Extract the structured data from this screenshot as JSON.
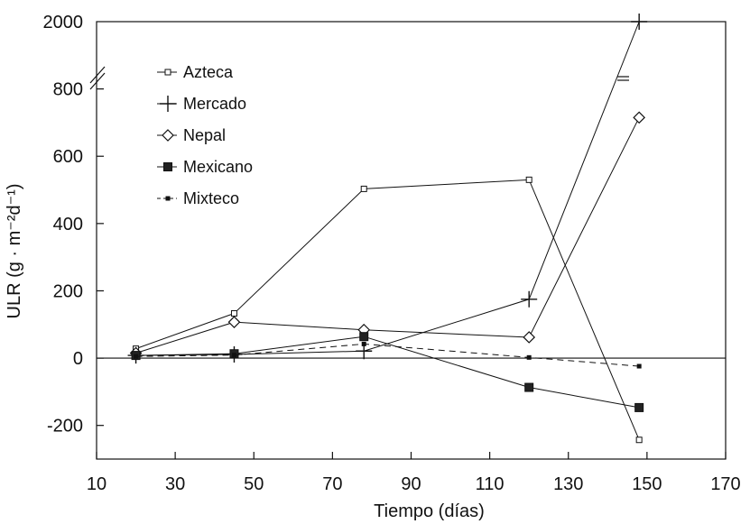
{
  "chart_data": {
    "type": "line",
    "xlabel": "Tiempo  (días)",
    "ylabel": "ULR (g · m⁻²d⁻¹)",
    "xlim": [
      10,
      170
    ],
    "x_ticks": [
      10,
      30,
      50,
      70,
      90,
      110,
      130,
      150,
      170
    ],
    "x_tick_labels": [
      "10",
      "30",
      "50",
      "70",
      "90",
      "110",
      "130",
      "150",
      "170"
    ],
    "ylim": [
      -300,
      1000
    ],
    "y_ticks": [
      -200,
      0,
      200,
      400,
      600,
      800,
      2000
    ],
    "y_tick_labels": [
      "-200",
      "0",
      "200",
      "400",
      "600",
      "800",
      "2000"
    ],
    "y_axis_break": "between 800 and 2000",
    "grid": false,
    "zero_line": true,
    "legend_position": "top-left",
    "x": [
      20,
      45,
      78,
      120,
      148
    ],
    "series": [
      {
        "name": "Azteca",
        "marker": "open-square",
        "line": "solid",
        "values": [
          28,
          133,
          503,
          530,
          -243
        ]
      },
      {
        "name": "Mercado",
        "marker": "plus",
        "line": "solid",
        "values": [
          8,
          11,
          21,
          175,
          2000
        ]
      },
      {
        "name": "Nepal",
        "marker": "open-diamond",
        "line": "solid",
        "values": [
          15,
          107,
          84,
          62,
          715
        ]
      },
      {
        "name": "Mexicano",
        "marker": "filled-square",
        "line": "solid",
        "values": [
          8,
          13,
          64,
          -87,
          -147
        ]
      },
      {
        "name": "Mixteco",
        "marker": "small-filled-square",
        "line": "dashed",
        "values": [
          5,
          9,
          42,
          2,
          -24
        ]
      }
    ]
  }
}
